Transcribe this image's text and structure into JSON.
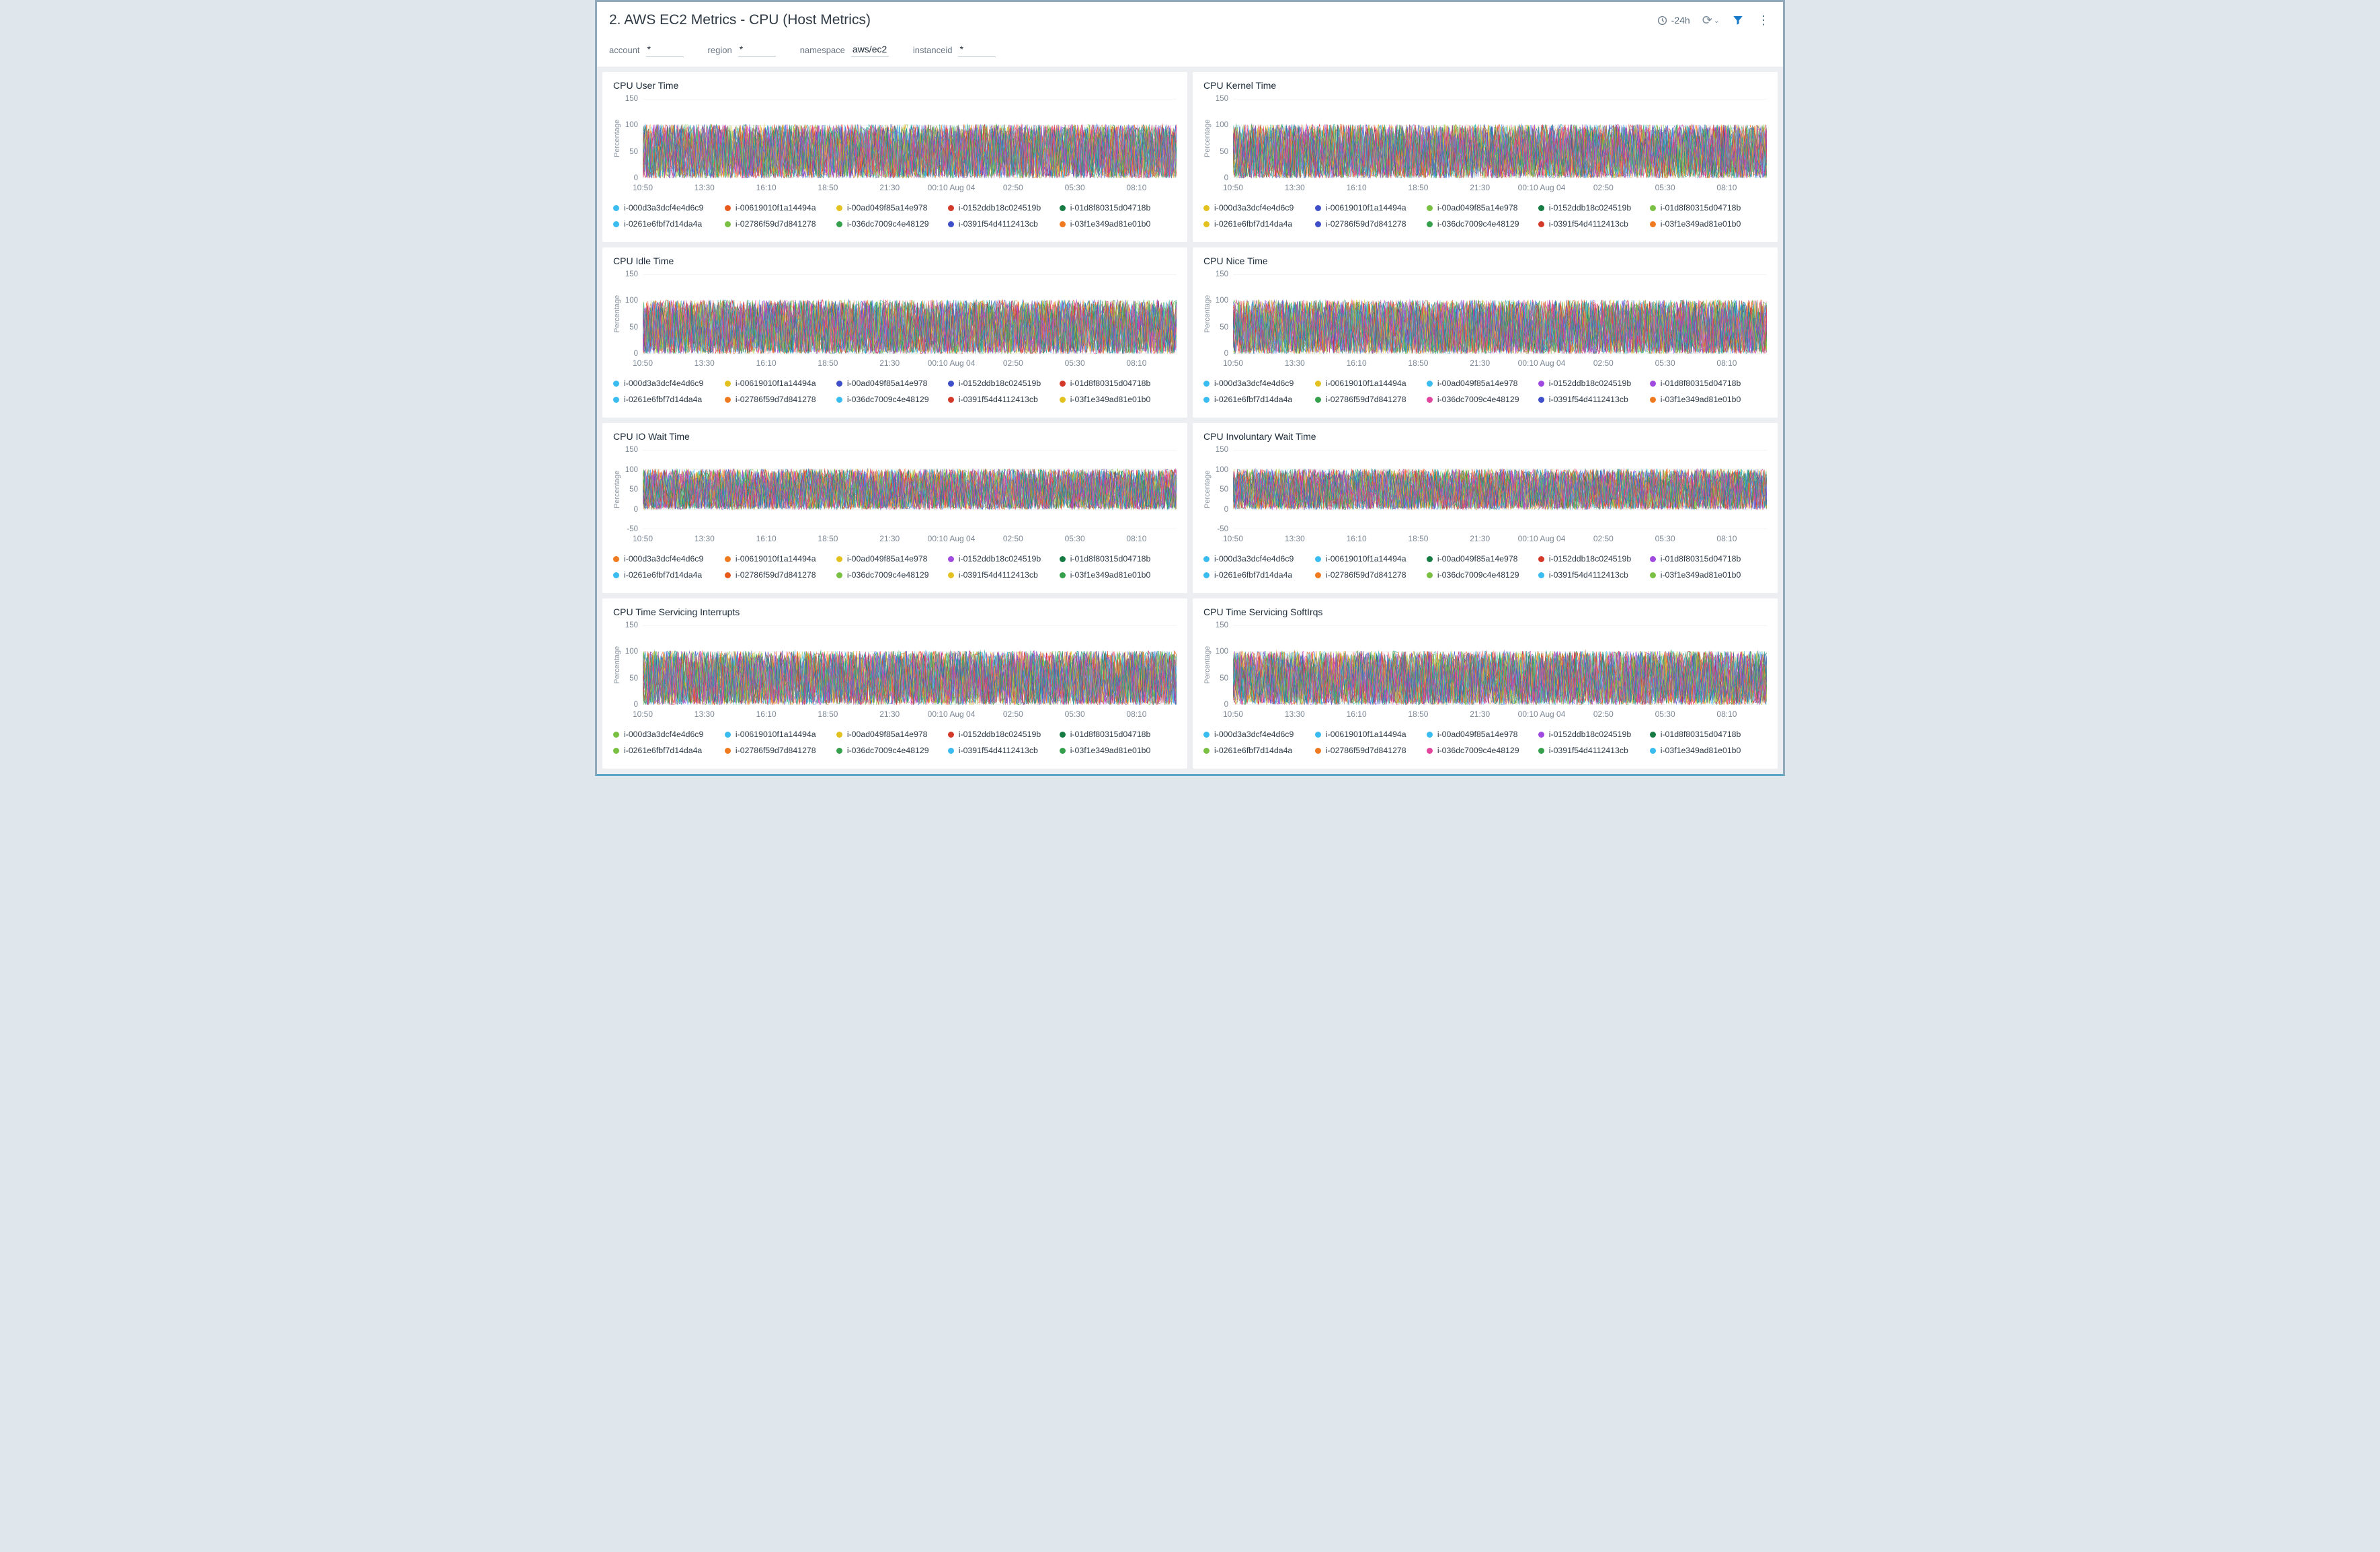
{
  "header": {
    "title": "2. AWS EC2 Metrics - CPU (Host Metrics)",
    "time_range": "-24h",
    "refresh_glyph": "⟳",
    "chevron_glyph": "⌄",
    "kebab_glyph": "⋮"
  },
  "filters": [
    {
      "label": "account",
      "value": "*"
    },
    {
      "label": "region",
      "value": "*"
    },
    {
      "label": "namespace",
      "value": "aws/ec2"
    },
    {
      "label": "instanceid",
      "value": "*"
    }
  ],
  "chart_data": {
    "type": "line",
    "ylabel": "Percentage",
    "x_ticks": [
      "10:50",
      "13:30",
      "16:10",
      "18:50",
      "21:30",
      "00:10 Aug 04",
      "02:50",
      "05:30",
      "08:10"
    ],
    "series": [
      "i-000d3a3dcf4e4d6c9",
      "i-00619010f1a14494a",
      "i-00ad049f85a14e978",
      "i-0152ddb18c024519b",
      "i-01d8f80315d04718b",
      "i-0261e6fbf7d14da4a",
      "i-02786f59d7d841278",
      "i-036dc7009c4e48129",
      "i-0391f54d4112413cb",
      "i-03f1e349ad81e01b0"
    ],
    "value_description": "Each panel shows densely overlapping noisy per-instance time series oscillating across approximately 0-100% over the last 24h",
    "observed_value_range": [
      0,
      100
    ],
    "panels": [
      {
        "title": "CPU User Time",
        "y_ticks": [
          150,
          100,
          50,
          0
        ],
        "legend_colors": [
          "#3bbcf0",
          "#e8591c",
          "#e3c11f",
          "#d43a2a",
          "#177c44",
          "#3bbcf0",
          "#79c043",
          "#37a04c",
          "#3f4ec9",
          "#f07a1f"
        ]
      },
      {
        "title": "CPU Kernel Time",
        "y_ticks": [
          150,
          100,
          50,
          0
        ],
        "legend_colors": [
          "#e3c11f",
          "#3f4ec9",
          "#79c043",
          "#177c44",
          "#79c043",
          "#e3c11f",
          "#3f4ec9",
          "#37a04c",
          "#d43a2a",
          "#f07a1f"
        ]
      },
      {
        "title": "CPU Idle Time",
        "y_ticks": [
          150,
          100,
          50,
          0
        ],
        "legend_colors": [
          "#3bbcf0",
          "#e3c11f",
          "#3f4ec9",
          "#3f4ec9",
          "#d43a2a",
          "#3bbcf0",
          "#f07a1f",
          "#3bbcf0",
          "#d43a2a",
          "#e3c11f"
        ]
      },
      {
        "title": "CPU Nice Time",
        "y_ticks": [
          150,
          100,
          50,
          0
        ],
        "legend_colors": [
          "#3bbcf0",
          "#e3c11f",
          "#3bbcf0",
          "#a14ae0",
          "#a14ae0",
          "#3bbcf0",
          "#37a04c",
          "#e2459e",
          "#3f4ec9",
          "#f07a1f"
        ]
      },
      {
        "title": "CPU IO Wait Time",
        "y_ticks": [
          150,
          100,
          50,
          0,
          -50
        ],
        "legend_colors": [
          "#f07a1f",
          "#f07a1f",
          "#e3c11f",
          "#a14ae0",
          "#177c44",
          "#3bbcf0",
          "#e8591c",
          "#79c043",
          "#e3c11f",
          "#37a04c"
        ]
      },
      {
        "title": "CPU Involuntary Wait Time",
        "y_ticks": [
          150,
          100,
          50,
          0,
          -50
        ],
        "legend_colors": [
          "#3bbcf0",
          "#3bbcf0",
          "#177c44",
          "#d43a2a",
          "#a14ae0",
          "#3bbcf0",
          "#f07a1f",
          "#79c043",
          "#3bbcf0",
          "#79c043"
        ]
      },
      {
        "title": "CPU Time Servicing Interrupts",
        "y_ticks": [
          150,
          100,
          50,
          0
        ],
        "legend_colors": [
          "#79c043",
          "#3bbcf0",
          "#e3c11f",
          "#d43a2a",
          "#177c44",
          "#79c043",
          "#f07a1f",
          "#37a04c",
          "#3bbcf0",
          "#37a04c"
        ]
      },
      {
        "title": "CPU Time Servicing SoftIrqs",
        "y_ticks": [
          150,
          100,
          50,
          0
        ],
        "legend_colors": [
          "#3bbcf0",
          "#3bbcf0",
          "#3bbcf0",
          "#a14ae0",
          "#177c44",
          "#79c043",
          "#f07a1f",
          "#e2459e",
          "#37a04c",
          "#3bbcf0"
        ]
      }
    ]
  },
  "chart_style": {
    "noise_palette": [
      "#4fc3f7",
      "#f0641e",
      "#e2c126",
      "#d5382c",
      "#1f8a4d",
      "#82c341",
      "#4353cc",
      "#a44ae0",
      "#e2459e",
      "#18a79b",
      "#f59a23",
      "#6fbf73",
      "#5c6bc0",
      "#c2185b",
      "#7e57c2",
      "#26a69a",
      "#ff8a65",
      "#9ccc65",
      "#42a5f5",
      "#ef5350"
    ],
    "series_per_panel": 30,
    "grid_color": "#e4e8ec"
  },
  "colors": {
    "accent_blue": "#1779c7",
    "header_text": "#2f3a44",
    "axis_text": "#7b8794",
    "panel_bg": "#ffffff",
    "dashboard_bg": "#eceef1",
    "frame_border": "#8fa9ba"
  }
}
